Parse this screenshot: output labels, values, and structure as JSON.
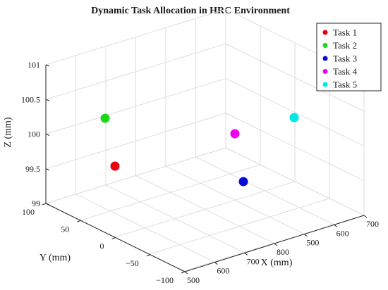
{
  "chart_data": {
    "type": "scatter",
    "projection": "3d",
    "title": "Dynamic Task Allocation in HRC Environment",
    "xlabel": "X (mm)",
    "ylabel": "Y (mm)",
    "zlabel": "Z (mm)",
    "xlim": [
      500,
      700
    ],
    "ylim": [
      -100,
      100
    ],
    "zlim": [
      99,
      101
    ],
    "xticks": [
      "500",
      "600",
      "700",
      "800",
      "500",
      "600",
      "700"
    ],
    "yticks": [
      "100",
      "50",
      "0",
      "−50",
      "−100"
    ],
    "zticks": [
      "101",
      "100.5",
      "100",
      "99.5",
      "99"
    ],
    "grid": true,
    "legend_position": "top-right",
    "series": [
      {
        "name": "Task 1",
        "color": "#e8000b",
        "x": 540,
        "y": 80,
        "z": 99.5
      },
      {
        "name": "Task 2",
        "color": "#1bd81b",
        "x": 520,
        "y": 40,
        "z": 100
      },
      {
        "name": "Task 3",
        "color": "#0a0ad6",
        "x": 630,
        "y": -90,
        "z": 99.5
      },
      {
        "name": "Task 4",
        "color": "#f000f0",
        "x": 640,
        "y": -40,
        "z": 100
      },
      {
        "name": "Task 5",
        "color": "#00e8e8",
        "x": 700,
        "y": -40,
        "z": 100
      }
    ]
  }
}
